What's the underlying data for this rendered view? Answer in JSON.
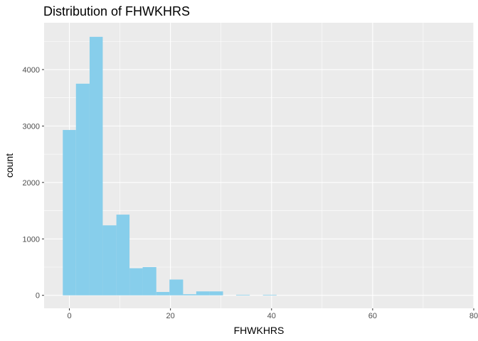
{
  "chart_data": {
    "type": "bar",
    "title": "Distribution of FHWKHRS",
    "xlabel": "FHWKHRS",
    "ylabel": "count",
    "xlim": [
      -5,
      80
    ],
    "ylim": [
      -230,
      4830
    ],
    "x_ticks": [
      0,
      20,
      40,
      60,
      80
    ],
    "y_ticks": [
      0,
      1000,
      2000,
      3000,
      4000
    ],
    "bin_width": 2.64,
    "bins": [
      {
        "x0": -1.3,
        "x1": 1.3,
        "count": 2930
      },
      {
        "x0": 1.3,
        "x1": 4.0,
        "count": 3750
      },
      {
        "x0": 4.0,
        "x1": 6.6,
        "count": 4580
      },
      {
        "x0": 6.6,
        "x1": 9.3,
        "count": 1240
      },
      {
        "x0": 9.3,
        "x1": 11.9,
        "count": 1430
      },
      {
        "x0": 11.9,
        "x1": 14.5,
        "count": 480
      },
      {
        "x0": 14.5,
        "x1": 17.2,
        "count": 500
      },
      {
        "x0": 17.2,
        "x1": 19.8,
        "count": 60
      },
      {
        "x0": 19.8,
        "x1": 22.5,
        "count": 280
      },
      {
        "x0": 22.5,
        "x1": 25.1,
        "count": 20
      },
      {
        "x0": 25.1,
        "x1": 27.7,
        "count": 70
      },
      {
        "x0": 27.7,
        "x1": 30.4,
        "count": 70
      },
      {
        "x0": 30.4,
        "x1": 33.0,
        "count": 0
      },
      {
        "x0": 33.0,
        "x1": 35.7,
        "count": 10
      },
      {
        "x0": 35.7,
        "x1": 38.3,
        "count": 0
      },
      {
        "x0": 38.3,
        "x1": 41.0,
        "count": 10
      },
      {
        "x0": 41.0,
        "x1": 43.6,
        "count": 0
      },
      {
        "x0": 43.6,
        "x1": 46.2,
        "count": 0
      },
      {
        "x0": 46.2,
        "x1": 48.9,
        "count": 0
      },
      {
        "x0": 48.9,
        "x1": 51.5,
        "count": 0
      },
      {
        "x0": 51.5,
        "x1": 54.2,
        "count": 0
      },
      {
        "x0": 54.2,
        "x1": 56.8,
        "count": 0
      },
      {
        "x0": 56.8,
        "x1": 59.4,
        "count": 0
      },
      {
        "x0": 59.4,
        "x1": 62.1,
        "count": 0
      },
      {
        "x0": 62.1,
        "x1": 64.7,
        "count": 0
      },
      {
        "x0": 64.7,
        "x1": 67.4,
        "count": 0
      },
      {
        "x0": 67.4,
        "x1": 70.0,
        "count": 0
      },
      {
        "x0": 70.0,
        "x1": 72.7,
        "count": 0
      },
      {
        "x0": 72.7,
        "x1": 75.3,
        "count": 0
      },
      {
        "x0": 75.3,
        "x1": 77.9,
        "count": 0
      }
    ],
    "colors": {
      "bar_fill": "#87CEEB",
      "panel_background": "#EBEBEB",
      "gridline": "#FFFFFF"
    },
    "grid": true,
    "legend": "none"
  }
}
